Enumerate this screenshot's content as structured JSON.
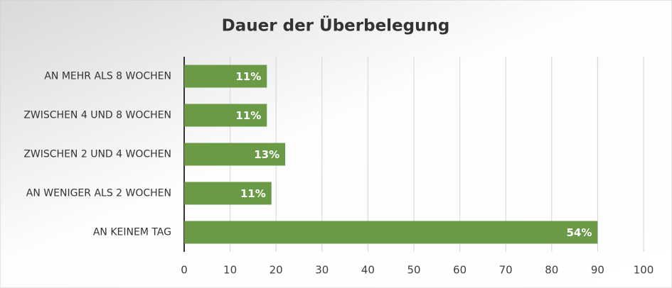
{
  "chart_data": {
    "type": "bar",
    "orientation": "horizontal",
    "title": "Dauer der Überbelegung",
    "categories": [
      "AN MEHR ALS 8 WOCHEN",
      "ZWISCHEN 4 UND 8 WOCHEN",
      "ZWISCHEN 2 UND 4 WOCHEN",
      "AN WENIGER ALS 2 WOCHEN",
      "AN KEINEM TAG"
    ],
    "values": [
      18,
      18,
      22,
      19,
      90
    ],
    "data_labels": [
      "11%",
      "11%",
      "13%",
      "11%",
      "54%"
    ],
    "color": "#6b9a47",
    "xlim": [
      0,
      100
    ],
    "xticks": [
      0,
      10,
      20,
      30,
      40,
      50,
      60,
      70,
      80,
      90,
      100
    ],
    "grid": true
  }
}
